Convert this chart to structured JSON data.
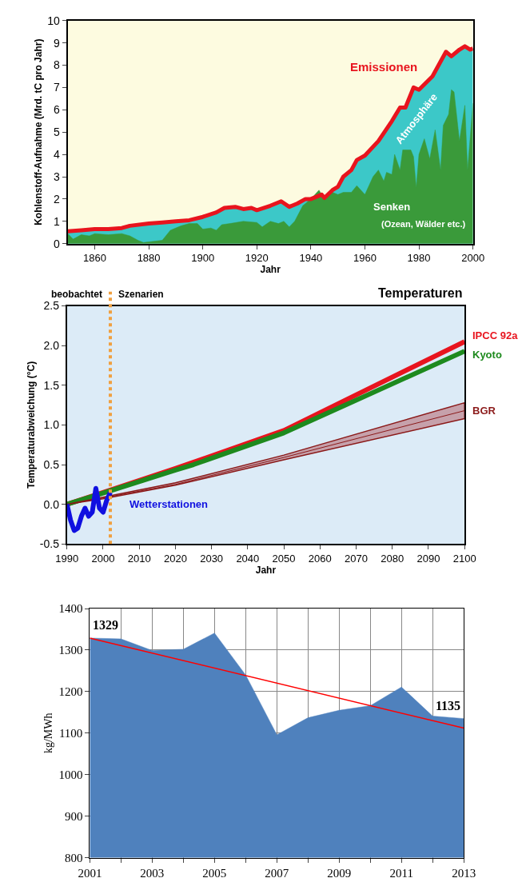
{
  "chart_data": [
    {
      "type": "area",
      "xlabel": "Jahr",
      "ylabel": "Kohlenstoff-Aufnahme (Mrd. tC pro Jahr)",
      "xlim": [
        1850,
        2000
      ],
      "ylim": [
        0,
        10
      ],
      "xticks": [
        1860,
        1880,
        1900,
        1920,
        1940,
        1960,
        1980,
        2000
      ],
      "yticks": [
        0,
        1,
        2,
        3,
        4,
        5,
        6,
        7,
        8,
        9,
        10
      ],
      "grid": false,
      "series": [
        {
          "color": "#3cc8c8",
          "x": [
            1850,
            1855,
            1860,
            1865,
            1870,
            1873,
            1880,
            1885,
            1890,
            1895,
            1900,
            1905,
            1908,
            1912,
            1915,
            1918,
            1920,
            1925,
            1929,
            1932,
            1935,
            1938,
            1940,
            1944,
            1945,
            1948,
            1950,
            1952,
            1955,
            1957,
            1960,
            1965,
            1970,
            1973,
            1975,
            1978,
            1980,
            1985,
            1990,
            1992,
            1995,
            1997,
            1999,
            2000
          ],
          "values": [
            0.55,
            0.6,
            0.65,
            0.65,
            0.7,
            0.8,
            0.9,
            0.95,
            1.0,
            1.05,
            1.2,
            1.4,
            1.6,
            1.65,
            1.55,
            1.6,
            1.5,
            1.7,
            1.9,
            1.65,
            1.8,
            2.0,
            2.0,
            2.2,
            2.05,
            2.4,
            2.55,
            3.0,
            3.3,
            3.75,
            3.95,
            4.6,
            5.5,
            6.1,
            6.1,
            7.0,
            6.9,
            7.5,
            8.6,
            8.4,
            8.7,
            8.85,
            8.7,
            8.75
          ]
        },
        {
          "color": "#3a9a3a",
          "x": [
            1850,
            1852,
            1855,
            1858,
            1860,
            1865,
            1870,
            1873,
            1876,
            1878,
            1885,
            1888,
            1892,
            1895,
            1898,
            1900,
            1903,
            1905,
            1907,
            1910,
            1915,
            1920,
            1922,
            1925,
            1928,
            1930,
            1932,
            1934,
            1937,
            1940,
            1943,
            1945,
            1948,
            1950,
            1952,
            1955,
            1957,
            1960,
            1963,
            1965,
            1967,
            1968,
            1970,
            1971,
            1973,
            1974,
            1977,
            1978,
            1979,
            1980,
            1982,
            1984,
            1986,
            1988,
            1989,
            1991,
            1992,
            1993,
            1995,
            1997,
            1998,
            2000
          ],
          "values": [
            0.45,
            0.2,
            0.4,
            0.35,
            0.45,
            0.4,
            0.45,
            0.35,
            0.15,
            0.05,
            0.15,
            0.6,
            0.8,
            0.9,
            0.9,
            0.65,
            0.7,
            0.6,
            0.85,
            0.9,
            1.0,
            0.95,
            0.75,
            1.0,
            0.9,
            1.0,
            0.75,
            1.0,
            1.7,
            2.0,
            2.4,
            2.0,
            2.3,
            2.2,
            2.3,
            2.3,
            2.6,
            2.2,
            3.0,
            3.3,
            2.8,
            3.2,
            3.1,
            4.0,
            3.3,
            4.2,
            4.2,
            3.9,
            2.5,
            4.0,
            4.7,
            3.8,
            5.1,
            3.3,
            5.3,
            5.8,
            6.9,
            6.8,
            4.6,
            6.2,
            3.3,
            6.3
          ]
        },
        {
          "type": "line",
          "color": "#e8141e",
          "x": [
            1850,
            1855,
            1860,
            1865,
            1870,
            1873,
            1880,
            1885,
            1890,
            1895,
            1900,
            1905,
            1908,
            1912,
            1915,
            1918,
            1920,
            1925,
            1929,
            1932,
            1935,
            1938,
            1940,
            1944,
            1945,
            1948,
            1950,
            1952,
            1955,
            1957,
            1960,
            1965,
            1970,
            1973,
            1975,
            1978,
            1980,
            1985,
            1990,
            1992,
            1995,
            1997,
            1999,
            2000
          ],
          "values": [
            0.55,
            0.6,
            0.65,
            0.65,
            0.7,
            0.8,
            0.9,
            0.95,
            1.0,
            1.05,
            1.2,
            1.4,
            1.6,
            1.65,
            1.55,
            1.6,
            1.5,
            1.7,
            1.9,
            1.65,
            1.8,
            2.0,
            2.0,
            2.2,
            2.05,
            2.4,
            2.55,
            3.0,
            3.3,
            3.75,
            3.95,
            4.6,
            5.5,
            6.1,
            6.1,
            7.0,
            6.9,
            7.5,
            8.6,
            8.4,
            8.7,
            8.85,
            8.7,
            8.75
          ]
        }
      ],
      "annotations": [
        "Emissionen",
        "Atmosphäre",
        "Senken",
        "(Ozean, Wälder etc.)"
      ]
    },
    {
      "type": "line",
      "title": "Temperaturen",
      "xlabel": "Jahr",
      "ylabel": "Temperaturabweichung (°C)",
      "xlim": [
        1990,
        2100
      ],
      "ylim": [
        -0.5,
        2.5
      ],
      "xticks": [
        1990,
        2000,
        2010,
        2020,
        2030,
        2040,
        2050,
        2060,
        2070,
        2080,
        2090,
        2100
      ],
      "yticks": [
        {
          "value": -0.5,
          "label": "-0.5"
        },
        {
          "value": 0,
          "label": "0.0"
        },
        0.5,
        {
          "value": 1,
          "label": "1.0"
        },
        1.5,
        {
          "value": 2,
          "label": "2.0"
        },
        2.5
      ],
      "grid": false,
      "series": [
        {
          "name": "IPCC 92a",
          "color": "#e8141e",
          "x": [
            1990,
            2000,
            2020,
            2050,
            2100
          ],
          "values": [
            0,
            0.15,
            0.45,
            0.93,
            2.05
          ]
        },
        {
          "name": "Kyoto",
          "color": "#1e8a1e",
          "x": [
            1990,
            2000,
            2020,
            2025,
            2050,
            2100
          ],
          "values": [
            0,
            0.14,
            0.43,
            0.5,
            0.9,
            1.93
          ]
        },
        {
          "name": "BGR",
          "type": "line",
          "color": "#8b1a1a",
          "x": [
            1990,
            2000,
            2020,
            2050,
            2100
          ],
          "values": [
            0,
            0.08,
            0.25,
            0.59,
            1.18
          ],
          "lower": [
            0,
            0.07,
            0.24,
            0.56,
            1.08
          ],
          "upper": [
            0,
            0.09,
            0.27,
            0.62,
            1.28
          ]
        },
        {
          "name": "Wetterstationen",
          "color": "#1010e0",
          "x": [
            1990,
            1991,
            1992,
            1993,
            1994,
            1995,
            1996,
            1997,
            1998,
            1999,
            2000,
            2001,
            2002
          ],
          "values": [
            0,
            -0.2,
            -0.33,
            -0.3,
            -0.15,
            -0.05,
            -0.15,
            -0.1,
            0.2,
            -0.05,
            -0.1,
            0.05,
            0.15
          ]
        }
      ],
      "ref_lines": [
        {
          "axis": "x",
          "value": 2002,
          "label": null,
          "color": "#f0a040",
          "line_style": "dotted"
        }
      ],
      "annotations": [
        "beobachtet",
        "Szenarien"
      ]
    },
    {
      "type": "area",
      "ylabel": "kg/MWh",
      "xlim": [
        2001,
        2013
      ],
      "ylim": [
        800,
        1400
      ],
      "xticks": [
        2001,
        {
          "value": 2002,
          "label": null
        },
        2003,
        {
          "value": 2004,
          "label": null
        },
        2005,
        {
          "value": 2006,
          "label": null
        },
        2007,
        {
          "value": 2008,
          "label": null
        },
        2009,
        {
          "value": 2010,
          "label": null
        },
        2011,
        {
          "value": 2012,
          "label": null
        },
        2013
      ],
      "yticks": [
        800,
        900,
        1000,
        1100,
        1200,
        1300,
        1400
      ],
      "grid": true,
      "series": [
        {
          "color": "#4f81bd",
          "x": [
            2001,
            2002,
            2003,
            2004,
            2005,
            2006,
            2007,
            2008,
            2009,
            2010,
            2011,
            2012,
            2013
          ],
          "values": [
            1329,
            1327,
            1299,
            1302,
            1341,
            1240,
            1096,
            1137,
            1155,
            1166,
            1211,
            1141,
            1135
          ],
          "value_labels": [
            "1329",
            null,
            null,
            null,
            null,
            null,
            null,
            null,
            null,
            null,
            null,
            null,
            "1135"
          ]
        },
        {
          "type": "line",
          "color": "#ff0000",
          "x": [
            2001,
            2013
          ],
          "values": [
            1329,
            1112
          ]
        }
      ]
    }
  ]
}
